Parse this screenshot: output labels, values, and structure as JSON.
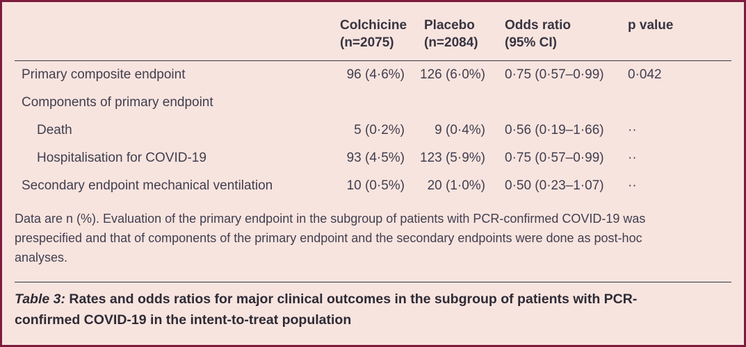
{
  "colors": {
    "background": "#f8e4df",
    "border": "#7d1b3e",
    "rule": "#37343f",
    "text": "#413e4e"
  },
  "table": {
    "header": {
      "colchicine": {
        "line1": "Colchicine",
        "line2": "(n=2075)"
      },
      "placebo": {
        "line1": "Placebo",
        "line2": "(n=2084)"
      },
      "odds_ratio": {
        "line1": "Odds ratio",
        "line2": "(95% CI)"
      },
      "p_value": "p value"
    },
    "rows": [
      {
        "label": "Primary composite endpoint",
        "colchicine": "96 (4·6%)",
        "placebo": "126 (6·0%)",
        "odds_ratio": "0·75 (0·57–0·99)",
        "p_value": "0·042"
      },
      {
        "label": "Components of primary endpoint",
        "colchicine": "",
        "placebo": "",
        "odds_ratio": "",
        "p_value": ""
      },
      {
        "label": "Death",
        "colchicine": "5 (0·2%)",
        "placebo": "9 (0·4%)",
        "odds_ratio": "0·56 (0·19–1·66)",
        "p_value": "··"
      },
      {
        "label": "Hospitalisation for COVID-19",
        "colchicine": "93 (4·5%)",
        "placebo": "123 (5·9%)",
        "odds_ratio": "0·75 (0·57–0·99)",
        "p_value": "··"
      },
      {
        "label": "Secondary endpoint mechanical ventilation",
        "colchicine": "10 (0·5%)",
        "placebo": "20 (1·0%)",
        "odds_ratio": "0·50 (0·23–1·07)",
        "p_value": "··"
      }
    ],
    "footnote": "Data are n (%). Evaluation of the primary endpoint in the subgroup of patients with PCR-confirmed COVID-19 was prespecified and that of components of the primary endpoint and the secondary endpoints were done as post-hoc analyses.",
    "caption": {
      "prefix": "Table 3:",
      "text": " Rates and odds ratios for major clinical outcomes in the subgroup of patients with PCR-confirmed COVID-19 in the intent-to-treat population"
    }
  }
}
